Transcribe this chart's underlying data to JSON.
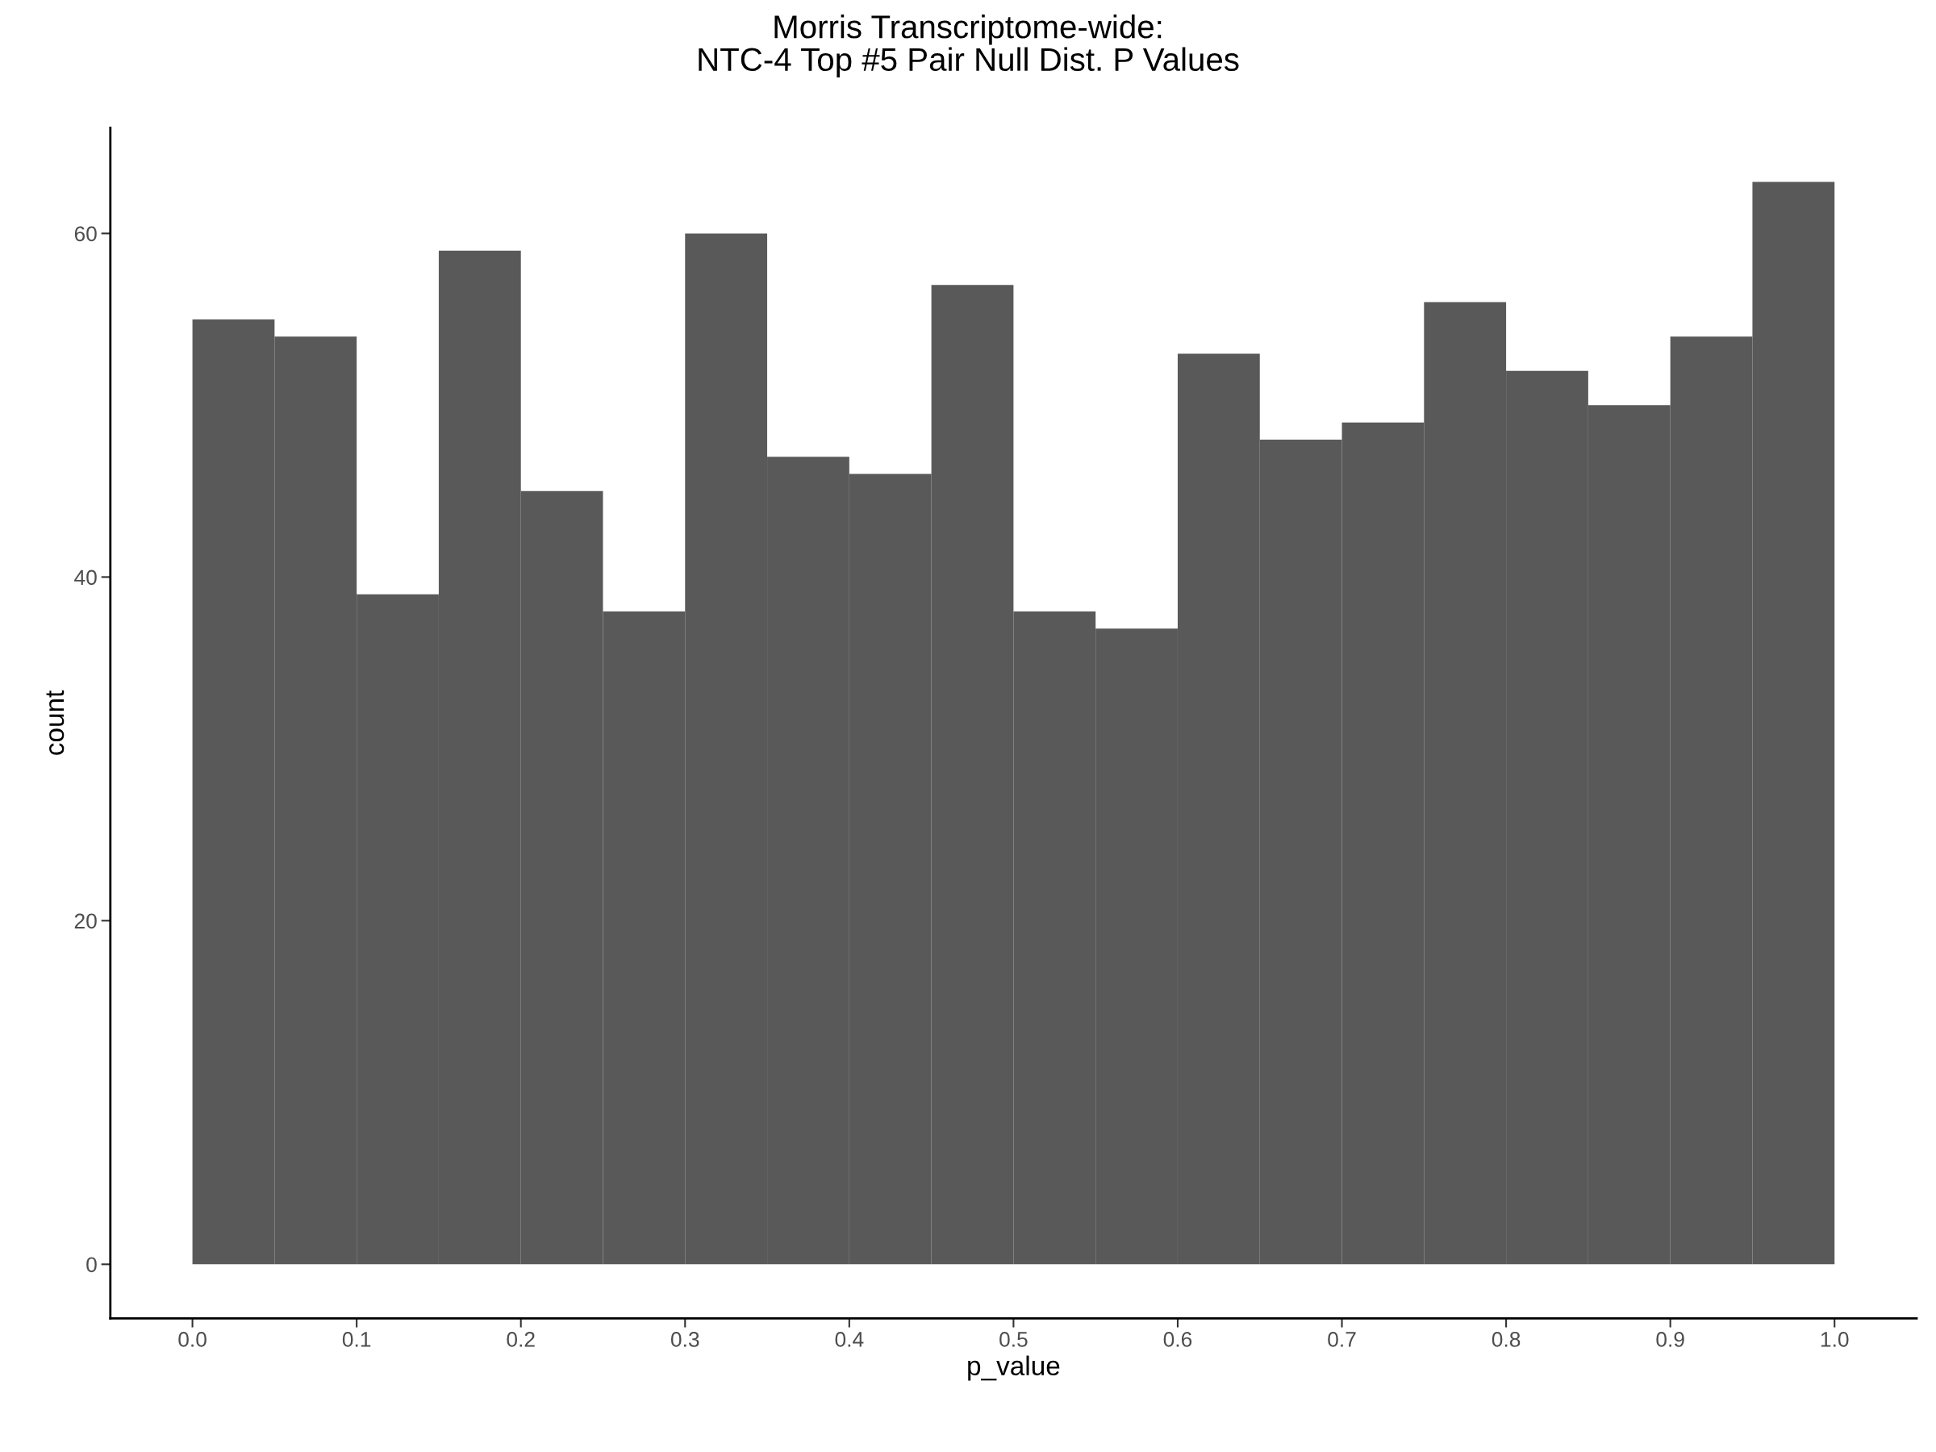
{
  "chart_data": {
    "type": "histogram",
    "title": "Morris Transcriptome-wide:\nNTC-4 Top #5 Pair Null Dist. P Values",
    "xlabel": "p_value",
    "ylabel": "count",
    "bins": [
      0.0,
      0.05,
      0.1,
      0.15,
      0.2,
      0.25,
      0.3,
      0.35,
      0.4,
      0.45,
      0.5,
      0.55,
      0.6,
      0.65,
      0.7,
      0.75,
      0.8,
      0.85,
      0.9,
      0.95,
      1.0
    ],
    "values": [
      55,
      54,
      39,
      59,
      45,
      38,
      60,
      47,
      46,
      57,
      38,
      37,
      53,
      48,
      49,
      56,
      52,
      50,
      54,
      63
    ],
    "color": "#595959",
    "xlim": [
      -0.05,
      1.05
    ],
    "ylim": [
      -3.15,
      66.15
    ],
    "xticks": [
      {
        "value": 0,
        "label": "0.0"
      },
      {
        "value": 0.1,
        "label": "0.1"
      },
      {
        "value": 0.2,
        "label": "0.2"
      },
      {
        "value": 0.3,
        "label": "0.3"
      },
      {
        "value": 0.4,
        "label": "0.4"
      },
      {
        "value": 0.5,
        "label": "0.5"
      },
      {
        "value": 0.6,
        "label": "0.6"
      },
      {
        "value": 0.7,
        "label": "0.7"
      },
      {
        "value": 0.8,
        "label": "0.8"
      },
      {
        "value": 0.9,
        "label": "0.9"
      },
      {
        "value": 1,
        "label": "1.0"
      }
    ],
    "yticks": [
      0,
      20,
      40,
      60
    ],
    "grid": false,
    "legend": false
  }
}
